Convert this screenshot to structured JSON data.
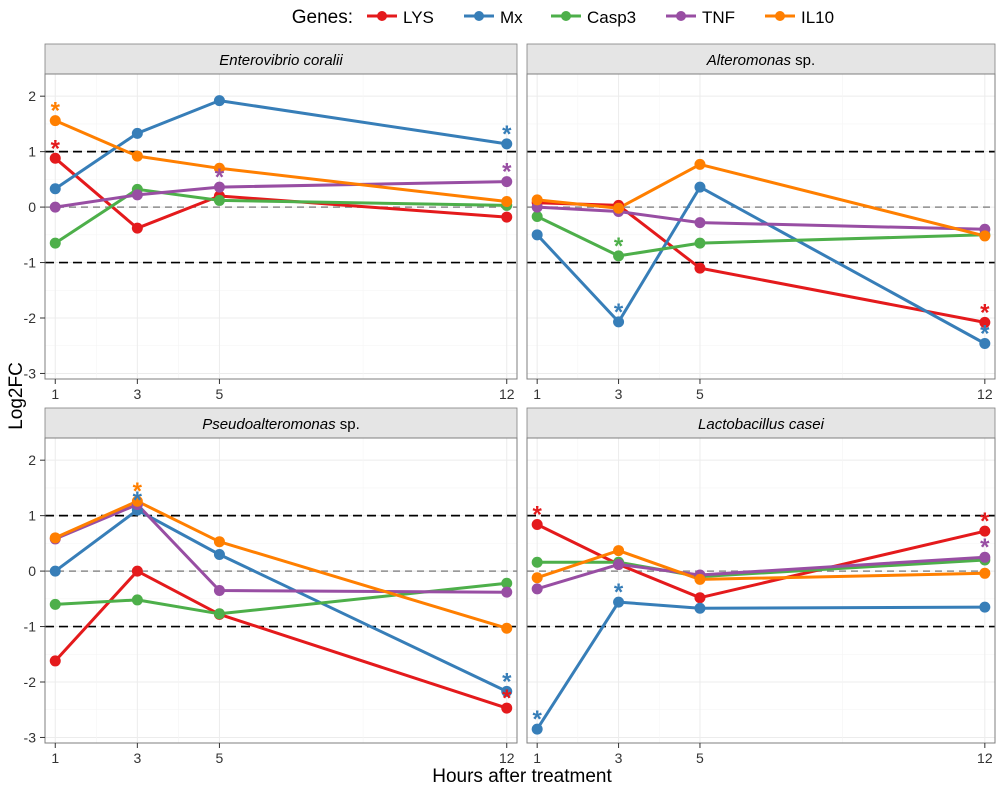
{
  "legend": {
    "title": "Genes:",
    "items": [
      {
        "name": "LYS",
        "color": "#e41a1c"
      },
      {
        "name": "Mx",
        "color": "#377eb8"
      },
      {
        "name": "Casp3",
        "color": "#4daf4a"
      },
      {
        "name": "TNF",
        "color": "#984ea3"
      },
      {
        "name": "IL10",
        "color": "#ff7f00"
      }
    ]
  },
  "ylabel": "Log2FC",
  "xlabel": "Hours after treatment",
  "chart_data": {
    "type": "line",
    "x": [
      1,
      3,
      5,
      12
    ],
    "xlim": [
      0.75,
      12.25
    ],
    "ylim": [
      -3.1,
      2.4
    ],
    "yticks": [
      2,
      1,
      0,
      -1,
      -2,
      -3
    ],
    "ytick_labels": [
      "2",
      "1",
      "0",
      "-1",
      "-2",
      "-3"
    ],
    "xtick_labels": [
      "1",
      "3",
      "5",
      "12"
    ],
    "reference_lines": {
      "dashed_black": [
        1,
        -1
      ],
      "dashed_grey": [
        0
      ]
    },
    "panels": [
      {
        "title_italic": "Enterovibrio coralii",
        "title_plain": "",
        "series": [
          {
            "name": "LYS",
            "values": [
              0.88,
              -0.38,
              0.2,
              -0.18
            ]
          },
          {
            "name": "Mx",
            "values": [
              0.33,
              1.33,
              1.92,
              1.14
            ]
          },
          {
            "name": "Casp3",
            "values": [
              -0.65,
              0.32,
              0.12,
              0.03
            ]
          },
          {
            "name": "TNF",
            "values": [
              0.0,
              0.22,
              0.36,
              0.46
            ]
          },
          {
            "name": "IL10",
            "values": [
              1.56,
              0.92,
              0.7,
              0.1
            ]
          }
        ],
        "significance": [
          {
            "series": "IL10",
            "x": 1,
            "y": 1.56
          },
          {
            "series": "LYS",
            "x": 1,
            "y": 0.88
          },
          {
            "series": "TNF",
            "x": 5,
            "y": 0.36
          },
          {
            "series": "Mx",
            "x": 12,
            "y": 1.14
          },
          {
            "series": "TNF",
            "x": 12,
            "y": 0.46
          }
        ]
      },
      {
        "title_italic": "Alteromonas",
        "title_plain": " sp.",
        "series": [
          {
            "name": "LYS",
            "values": [
              0.08,
              0.03,
              -1.1,
              -2.08
            ]
          },
          {
            "name": "Mx",
            "values": [
              -0.5,
              -2.07,
              0.36,
              -2.46
            ]
          },
          {
            "name": "Casp3",
            "values": [
              -0.17,
              -0.88,
              -0.65,
              -0.5
            ]
          },
          {
            "name": "TNF",
            "values": [
              0.0,
              -0.08,
              -0.28,
              -0.4
            ]
          },
          {
            "name": "IL10",
            "values": [
              0.13,
              -0.02,
              0.77,
              -0.52
            ]
          }
        ],
        "significance": [
          {
            "series": "Casp3",
            "x": 3,
            "y": -0.88
          },
          {
            "series": "Mx",
            "x": 3,
            "y": -2.07
          },
          {
            "series": "LYS",
            "x": 12,
            "y": -2.08
          },
          {
            "series": "Mx",
            "x": 12,
            "y": -2.46
          }
        ]
      },
      {
        "title_italic": "Pseudoalteromonas",
        "title_plain": " sp.",
        "series": [
          {
            "name": "LYS",
            "values": [
              -1.62,
              0.0,
              -0.78,
              -2.47
            ]
          },
          {
            "name": "Mx",
            "values": [
              0.0,
              1.1,
              0.3,
              -2.17
            ]
          },
          {
            "name": "Casp3",
            "values": [
              -0.6,
              -0.52,
              -0.77,
              -0.22
            ]
          },
          {
            "name": "TNF",
            "values": [
              0.58,
              1.2,
              -0.35,
              -0.38
            ]
          },
          {
            "name": "IL10",
            "values": [
              0.6,
              1.26,
              0.53,
              -1.03
            ]
          }
        ],
        "significance": [
          {
            "series": "IL10",
            "x": 3,
            "y": 1.26
          },
          {
            "series": "Mx",
            "x": 3,
            "y": 1.1
          },
          {
            "series": "Mx",
            "x": 12,
            "y": -2.17
          },
          {
            "series": "LYS",
            "x": 12,
            "y": -2.47
          }
        ]
      },
      {
        "title_italic": "Lactobacillus casei",
        "title_plain": "",
        "series": [
          {
            "name": "LYS",
            "values": [
              0.84,
              0.12,
              -0.48,
              0.72
            ]
          },
          {
            "name": "Mx",
            "values": [
              -2.85,
              -0.56,
              -0.67,
              -0.65
            ]
          },
          {
            "name": "Casp3",
            "values": [
              0.16,
              0.16,
              -0.1,
              0.2
            ]
          },
          {
            "name": "TNF",
            "values": [
              -0.32,
              0.12,
              -0.07,
              0.25
            ]
          },
          {
            "name": "IL10",
            "values": [
              -0.12,
              0.37,
              -0.15,
              -0.04
            ]
          }
        ],
        "significance": [
          {
            "series": "LYS",
            "x": 1,
            "y": 0.84
          },
          {
            "series": "Mx",
            "x": 1,
            "y": -2.85
          },
          {
            "series": "Mx",
            "x": 3,
            "y": -0.56
          },
          {
            "series": "LYS",
            "x": 12,
            "y": 0.72
          },
          {
            "series": "TNF",
            "x": 12,
            "y": 0.25
          }
        ]
      }
    ]
  }
}
